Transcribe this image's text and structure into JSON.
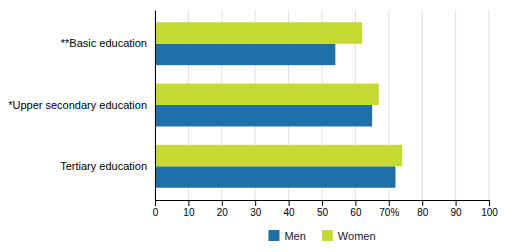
{
  "chart_data": {
    "type": "bar",
    "orientation": "horizontal",
    "categories": [
      "Tertiary education",
      "*Upper secondary education",
      "**Basic education"
    ],
    "series": [
      {
        "name": "Men",
        "color": "#1F6FA8",
        "values": [
          72,
          65,
          54
        ]
      },
      {
        "name": "Women",
        "color": "#C5D935",
        "values": [
          74,
          67,
          62
        ]
      }
    ],
    "xlim": [
      0,
      100
    ],
    "xticks": [
      0,
      10,
      20,
      30,
      40,
      50,
      60,
      {
        "value": 70,
        "label": "70%"
      },
      80,
      90,
      100
    ],
    "grid": true,
    "legend": "bottom"
  }
}
